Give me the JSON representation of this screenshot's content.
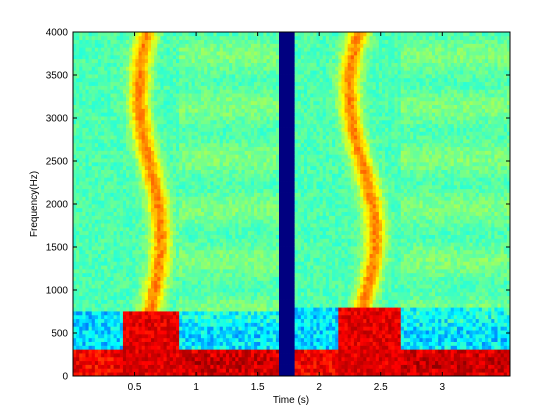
{
  "chart_data": {
    "type": "heatmap",
    "title": "",
    "xlabel": "Time (s)",
    "ylabel": "Frequency(Hz)",
    "xlim": [
      0,
      3.55
    ],
    "ylim": [
      0,
      4000
    ],
    "xticks": [
      0.5,
      1,
      1.5,
      2,
      2.5,
      3
    ],
    "xtick_labels": [
      "0.5",
      "1",
      "1.5",
      "2",
      "2.5",
      "3"
    ],
    "yticks": [
      0,
      500,
      1000,
      1500,
      2000,
      2500,
      3000,
      3500,
      4000
    ],
    "ytick_labels": [
      "0",
      "500",
      "1000",
      "1500",
      "2000",
      "2500",
      "3000",
      "3500",
      "4000"
    ],
    "colormap": "jet",
    "grid": false,
    "legend": "none",
    "silent_gap_s": [
      1.68,
      1.8
    ],
    "segments": [
      {
        "t": [
          0,
          1.68
        ],
        "high_energy_band_hz": [
          0,
          300
        ],
        "low_formant_burst": {
          "t": [
            0.4,
            0.85
          ],
          "f": [
            0,
            750
          ]
        },
        "formant_track": {
          "t": [
            0.5,
            0.75
          ],
          "f": [
            750,
            4000
          ]
        }
      },
      {
        "t": [
          1.8,
          3.55
        ],
        "high_energy_band_hz": [
          0,
          300
        ],
        "low_formant_burst": {
          "t": [
            2.15,
            2.65
          ],
          "f": [
            0,
            800
          ]
        },
        "formant_track": {
          "t": [
            2.2,
            2.5
          ],
          "f": [
            800,
            4000
          ]
        }
      }
    ]
  }
}
